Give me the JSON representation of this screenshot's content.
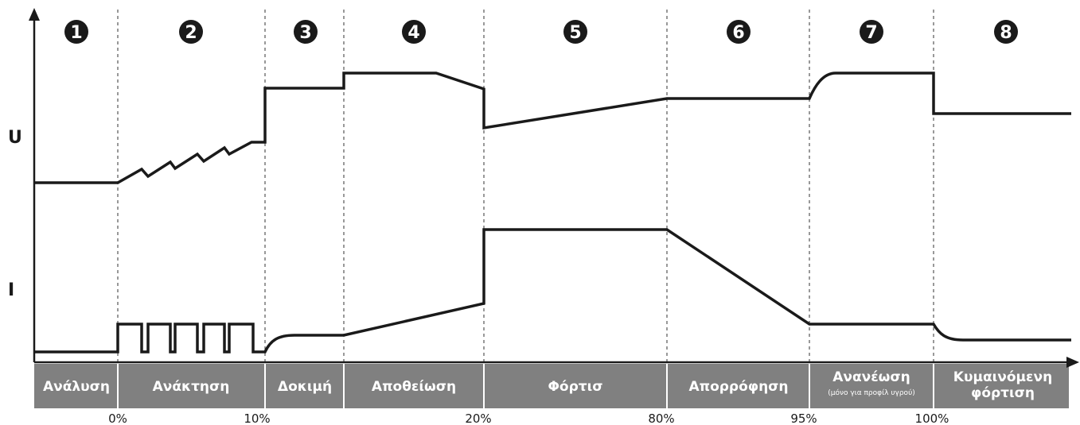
{
  "axes": {
    "y_voltage": "U",
    "y_current": "I"
  },
  "phases": [
    {
      "num": "1",
      "label": "Ανάλυση",
      "sub": ""
    },
    {
      "num": "2",
      "label": "Ανάκτηση",
      "sub": ""
    },
    {
      "num": "3",
      "label": "Δοκιμή",
      "sub": ""
    },
    {
      "num": "4",
      "label": "Αποθείωση",
      "sub": ""
    },
    {
      "num": "5",
      "label": "Φόρτισ",
      "sub": ""
    },
    {
      "num": "6",
      "label": "Απορρόφηση",
      "sub": ""
    },
    {
      "num": "7",
      "label": "Ανανέωση",
      "sub": "(μόνο για προφίλ υγρού)"
    },
    {
      "num": "8",
      "label": "Κυμαινόμενη",
      "label2": "φόρτιση",
      "sub": ""
    }
  ],
  "percent_marks": [
    "0%",
    "10%",
    "20%",
    "80%",
    "95%",
    "100%"
  ],
  "colors": {
    "line": "#1a1a1a",
    "phase_bar": "#808080",
    "circle": "#1a1a1a",
    "divider": "#333333"
  }
}
